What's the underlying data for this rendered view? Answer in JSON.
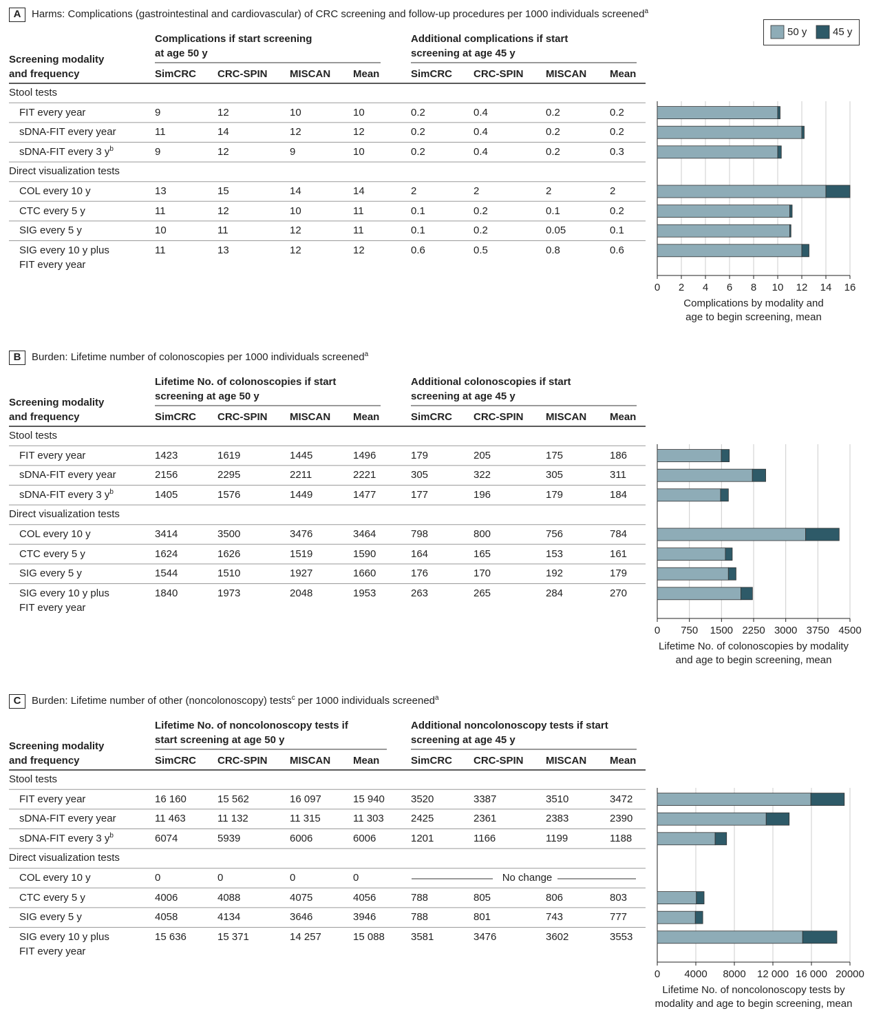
{
  "legend": [
    {
      "name": "50 y",
      "color": "#8eacb7"
    },
    {
      "name": "45 y",
      "color": "#2e5a68"
    }
  ],
  "chart_data": [
    {
      "type": "bar",
      "orientation": "horizontal",
      "panel": "A",
      "title": [
        {
          "text": "Harms: Complications (gastrointestinal and cardiovascular) of CRC screening and follow-up procedures per 1000 individuals screened"
        },
        {
          "sup": "a"
        }
      ],
      "table": {
        "stub_header": [
          "Screening modality",
          "and frequency"
        ],
        "group_headers": [
          [
            "Complications if start screening",
            "at age 50 y"
          ],
          [
            "Additional complications if start",
            "screening at age 45 y"
          ]
        ],
        "columns": [
          "SimCRC",
          "CRC-SPIN",
          "MISCAN",
          "Mean",
          "SimCRC",
          "CRC-SPIN",
          "MISCAN",
          "Mean"
        ],
        "groups": [
          {
            "label": "Stool tests",
            "rows": [
              {
                "label": "FIT every year",
                "cells": [
                  "9",
                  "12",
                  "10",
                  "10",
                  "0.2",
                  "0.4",
                  "0.2",
                  "0.2"
                ]
              },
              {
                "label": "sDNA-FIT every year",
                "cells": [
                  "11",
                  "14",
                  "12",
                  "12",
                  "0.2",
                  "0.4",
                  "0.2",
                  "0.2"
                ]
              },
              {
                "label": "sDNA-FIT every 3 y",
                "label_sup": "b",
                "cells": [
                  "9",
                  "12",
                  "9",
                  "10",
                  "0.2",
                  "0.4",
                  "0.2",
                  "0.3"
                ]
              }
            ]
          },
          {
            "label": "Direct visualization tests",
            "rows": [
              {
                "label": "COL every 10 y",
                "cells": [
                  "13",
                  "15",
                  "14",
                  "14",
                  "2",
                  "2",
                  "2",
                  "2"
                ]
              },
              {
                "label": "CTC every 5 y",
                "cells": [
                  "11",
                  "12",
                  "10",
                  "11",
                  "0.1",
                  "0.2",
                  "0.1",
                  "0.2"
                ]
              },
              {
                "label": "SIG every 5 y",
                "cells": [
                  "10",
                  "11",
                  "12",
                  "11",
                  "0.1",
                  "0.2",
                  "0.05",
                  "0.1"
                ]
              },
              {
                "label": [
                  "SIG every 10 y plus",
                  "FIT every year"
                ],
                "cells": [
                  "11",
                  "13",
                  "12",
                  "12",
                  "0.6",
                  "0.5",
                  "0.8",
                  "0.6"
                ]
              }
            ]
          }
        ]
      },
      "series": [
        {
          "values": [
            10,
            12,
            10,
            14,
            11,
            11,
            12
          ]
        },
        {
          "values": [
            0.2,
            0.2,
            0.3,
            2,
            0.2,
            0.1,
            0.6
          ]
        }
      ],
      "xlim": [
        0,
        16
      ],
      "xticks": [
        0,
        2,
        4,
        6,
        8,
        10,
        12,
        14,
        16
      ],
      "grid": true,
      "xlabel": [
        "Complications by modality and",
        "age to begin screening, mean"
      ]
    },
    {
      "type": "bar",
      "orientation": "horizontal",
      "panel": "B",
      "title": [
        {
          "text": "Burden: Lifetime number of colonoscopies per 1000 individuals screened"
        },
        {
          "sup": "a"
        }
      ],
      "table": {
        "stub_header": [
          "Screening modality",
          "and frequency"
        ],
        "group_headers": [
          [
            "Lifetime No. of colonoscopies if start",
            "screening at age 50 y"
          ],
          [
            "Additional colonoscopies if start",
            "screening at age 45 y"
          ]
        ],
        "columns": [
          "SimCRC",
          "CRC-SPIN",
          "MISCAN",
          "Mean",
          "SimCRC",
          "CRC-SPIN",
          "MISCAN",
          "Mean"
        ],
        "groups": [
          {
            "label": "Stool tests",
            "rows": [
              {
                "label": "FIT every year",
                "cells": [
                  "1423",
                  "1619",
                  "1445",
                  "1496",
                  "179",
                  "205",
                  "175",
                  "186"
                ]
              },
              {
                "label": "sDNA-FIT every year",
                "cells": [
                  "2156",
                  "2295",
                  "2211",
                  "2221",
                  "305",
                  "322",
                  "305",
                  "311"
                ]
              },
              {
                "label": "sDNA-FIT every 3 y",
                "label_sup": "b",
                "cells": [
                  "1405",
                  "1576",
                  "1449",
                  "1477",
                  "177",
                  "196",
                  "179",
                  "184"
                ]
              }
            ]
          },
          {
            "label": "Direct visualization tests",
            "rows": [
              {
                "label": "COL every 10 y",
                "cells": [
                  "3414",
                  "3500",
                  "3476",
                  "3464",
                  "798",
                  "800",
                  "756",
                  "784"
                ]
              },
              {
                "label": "CTC every 5 y",
                "cells": [
                  "1624",
                  "1626",
                  "1519",
                  "1590",
                  "164",
                  "165",
                  "153",
                  "161"
                ]
              },
              {
                "label": "SIG every 5 y",
                "cells": [
                  "1544",
                  "1510",
                  "1927",
                  "1660",
                  "176",
                  "170",
                  "192",
                  "179"
                ]
              },
              {
                "label": [
                  "SIG every 10 y plus",
                  "FIT every year"
                ],
                "cells": [
                  "1840",
                  "1973",
                  "2048",
                  "1953",
                  "263",
                  "265",
                  "284",
                  "270"
                ]
              }
            ]
          }
        ]
      },
      "series": [
        {
          "values": [
            1496,
            2221,
            1477,
            3464,
            1590,
            1660,
            1953
          ]
        },
        {
          "values": [
            186,
            311,
            184,
            784,
            161,
            179,
            270
          ]
        }
      ],
      "xlim": [
        0,
        4500
      ],
      "xticks": [
        0,
        750,
        1500,
        2250,
        3000,
        3750,
        4500
      ],
      "grid": true,
      "xlabel": [
        "Lifetime No. of colonoscopies by modality",
        "and age to begin screening, mean"
      ]
    },
    {
      "type": "bar",
      "orientation": "horizontal",
      "panel": "C",
      "title": [
        {
          "text": "Burden: Lifetime number of other (noncolonoscopy) tests"
        },
        {
          "sup": "c"
        },
        {
          "text": "per 1000 individuals screened"
        },
        {
          "sup": "a"
        }
      ],
      "table": {
        "stub_header": [
          "Screening modality",
          "and frequency"
        ],
        "group_headers": [
          [
            "Lifetime No. of noncolonoscopy tests if",
            "start screening at age 50 y"
          ],
          [
            "Additional noncolonoscopy tests if start",
            "screening at age 45 y"
          ]
        ],
        "columns": [
          "SimCRC",
          "CRC-SPIN",
          "MISCAN",
          "Mean",
          "SimCRC",
          "CRC-SPIN",
          "MISCAN",
          "Mean"
        ],
        "groups": [
          {
            "label": "Stool tests",
            "rows": [
              {
                "label": "FIT every year",
                "cells": [
                  "16 160",
                  "15 562",
                  "16 097",
                  "15 940",
                  "3520",
                  "3387",
                  "3510",
                  "3472"
                ]
              },
              {
                "label": "sDNA-FIT every year",
                "cells": [
                  "11 463",
                  "11 132",
                  "11 315",
                  "11 303",
                  "2425",
                  "2361",
                  "2383",
                  "2390"
                ]
              },
              {
                "label": "sDNA-FIT every 3 y",
                "label_sup": "b",
                "cells": [
                  "6074",
                  "5939",
                  "6006",
                  "6006",
                  "1201",
                  "1166",
                  "1199",
                  "1188"
                ]
              }
            ]
          },
          {
            "label": "Direct visualization tests",
            "rows": [
              {
                "label": "COL every 10 y",
                "cells": [
                  "0",
                  "0",
                  "0",
                  "0"
                ],
                "note": "No change"
              },
              {
                "label": "CTC every 5 y",
                "cells": [
                  "4006",
                  "4088",
                  "4075",
                  "4056",
                  "788",
                  "805",
                  "806",
                  "803"
                ]
              },
              {
                "label": "SIG every 5 y",
                "cells": [
                  "4058",
                  "4134",
                  "3646",
                  "3946",
                  "788",
                  "801",
                  "743",
                  "777"
                ]
              },
              {
                "label": [
                  "SIG every 10 y plus",
                  "FIT every year"
                ],
                "cells": [
                  "15 636",
                  "15 371",
                  "14 257",
                  "15 088",
                  "3581",
                  "3476",
                  "3602",
                  "3553"
                ]
              }
            ]
          }
        ]
      },
      "series": [
        {
          "values": [
            15940,
            11303,
            6006,
            0,
            4056,
            3946,
            15088
          ]
        },
        {
          "values": [
            3472,
            2390,
            1188,
            null,
            803,
            777,
            3553
          ]
        }
      ],
      "xlim": [
        0,
        20000
      ],
      "xticks": [
        0,
        4000,
        8000,
        {
          "value": 12000,
          "label": "12 000"
        },
        {
          "value": 16000,
          "label": "16 000"
        },
        20000
      ],
      "grid": true,
      "xlabel": [
        "Lifetime No. of noncolonoscopy tests by",
        "modality and age to begin screening, mean"
      ]
    }
  ]
}
